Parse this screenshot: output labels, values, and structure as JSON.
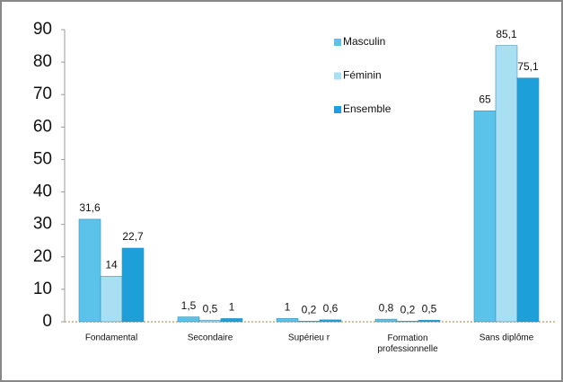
{
  "chart_data": {
    "type": "bar",
    "categories": [
      "Fondamental",
      "Secondaire",
      "Supérieu r",
      "Formation professionnelle",
      "Sans diplôme"
    ],
    "series": [
      {
        "name": "Masculin",
        "color": "#5bc3ea",
        "values": [
          31.6,
          1.5,
          1,
          0.8,
          65
        ],
        "value_labels": [
          "31,6",
          "1,5",
          "1",
          "0,8",
          "65"
        ]
      },
      {
        "name": "Féminin",
        "color": "#a9dff3",
        "values": [
          14,
          0.5,
          0.2,
          0.2,
          85.1
        ],
        "value_labels": [
          "14",
          "0,5",
          "0,2",
          "0,2",
          "85,1"
        ]
      },
      {
        "name": "Ensemble",
        "color": "#1d9fda",
        "values": [
          22.7,
          1,
          0.6,
          0.5,
          75.1
        ],
        "value_labels": [
          "22,7",
          "1",
          "0,6",
          "0,5",
          "75,1"
        ]
      }
    ],
    "ylim": [
      0,
      90
    ],
    "yticks": [
      0,
      10,
      20,
      30,
      40,
      50,
      60,
      70,
      80,
      90
    ],
    "legend": "top-right"
  }
}
